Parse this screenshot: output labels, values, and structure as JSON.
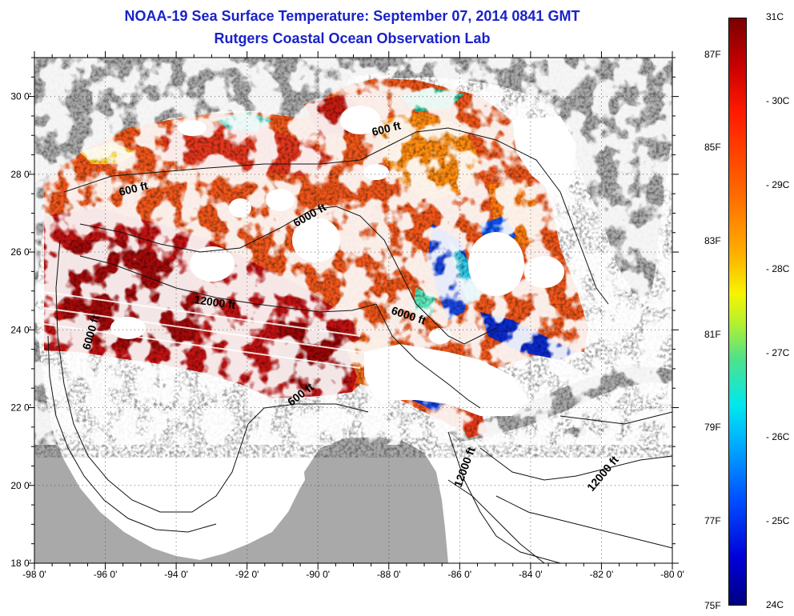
{
  "header": {
    "title": "NOAA-19 Sea Surface Temperature:  September 07, 2014 0841 GMT",
    "subtitle": "Rutgers Coastal Ocean Observation Lab"
  },
  "map": {
    "lon_range": [
      -98,
      -80
    ],
    "lat_range": [
      18,
      31
    ],
    "lon_ticks": [
      "-98 0'",
      "-96 0'",
      "-94 0'",
      "-92 0'",
      "-90 0'",
      "-88 0'",
      "-86 0'",
      "-84 0'",
      "-82 0'",
      "-80 0'"
    ],
    "lat_ticks": [
      "30 0'",
      "28 0'",
      "26 0'",
      "24 0'",
      "22 0'",
      "20 0'",
      "18 0'"
    ],
    "land_color": "#a9a9a9",
    "cloud_color": "#ffffff",
    "contour_labels": [
      {
        "text": "600 ft",
        "name": "contour-600ft-north-la"
      },
      {
        "text": "600 ft",
        "name": "contour-600ft-texas"
      },
      {
        "text": "6000 ft",
        "name": "contour-6000ft-central"
      },
      {
        "text": "12000 ft",
        "name": "contour-12000ft-west"
      },
      {
        "text": "6000 ft",
        "name": "contour-6000ft-west"
      },
      {
        "text": "6000 ft",
        "name": "contour-6000ft-east"
      },
      {
        "text": "600 ft",
        "name": "contour-600ft-campeche"
      },
      {
        "text": "12000 ft",
        "name": "contour-12000ft-yucatan"
      },
      {
        "text": "12000 ft",
        "name": "contour-12000ft-caribbean"
      }
    ]
  },
  "colorbar": {
    "celsius": [
      "31C",
      "30C",
      "29C",
      "28C",
      "27C",
      "26C",
      "25C",
      "24C"
    ],
    "fahrenheit": [
      "87F",
      "85F",
      "83F",
      "81F",
      "79F",
      "77F",
      "75F"
    ],
    "range_c": [
      24,
      31
    ],
    "range_f": [
      75,
      87
    ]
  }
}
